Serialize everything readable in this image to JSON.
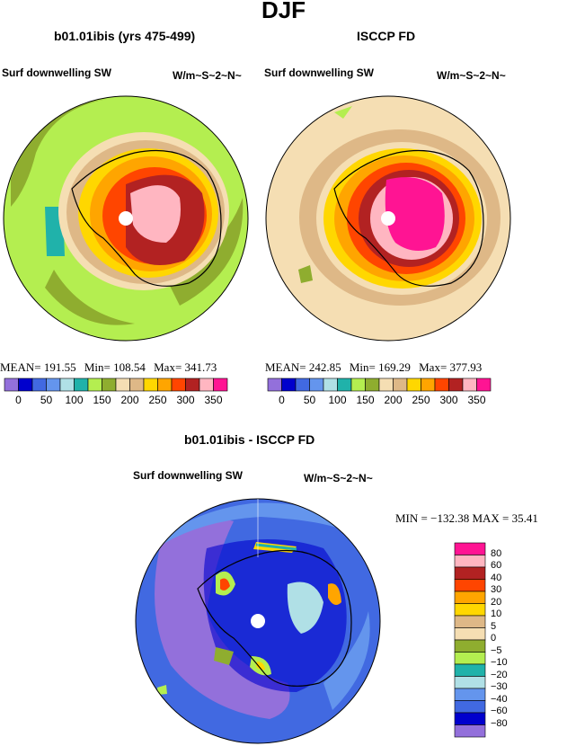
{
  "season": "DJF",
  "left_panel": {
    "title": "b01.01ibis (yrs 475-499)",
    "variable": "Surf downwelling SW",
    "units": "W/m~S~2~N~",
    "stats": {
      "mean_label": "MEAN=",
      "mean": "191.55",
      "min_label": "Min=",
      "min": "108.54",
      "max_label": "Max=",
      "max": "341.73"
    }
  },
  "right_panel": {
    "title": "ISCCP FD",
    "variable": "Surf downwelling SW",
    "units": "W/m~S~2~N~",
    "stats": {
      "mean_label": "MEAN=",
      "mean": "242.85",
      "min_label": "Min=",
      "min": "169.29",
      "max_label": "Max=",
      "max": "377.93"
    }
  },
  "shared_colorbar": {
    "labels": [
      "0",
      "50",
      "100",
      "150",
      "200",
      "250",
      "300",
      "350"
    ],
    "colors": [
      "#9370db",
      "#0000cd",
      "#4169e1",
      "#6495ed",
      "#b0e0e6",
      "#20b2aa",
      "#b4ee50",
      "#8fad2f",
      "#f5deb3",
      "#deb887",
      "#ffd700",
      "#ffa500",
      "#ff4500",
      "#b22222",
      "#ffb6c1",
      "#ff1493"
    ]
  },
  "diff_panel": {
    "title": "b01.01ibis - ISCCP FD",
    "variable": "Surf downwelling SW",
    "units": "W/m~S~2~N~",
    "minmax": "MIN = −132.38 MAX =  35.41",
    "legend": {
      "labels": [
        "80",
        "60",
        "40",
        "30",
        "20",
        "10",
        "5",
        "0",
        "−5",
        "−10",
        "−20",
        "−30",
        "−40",
        "−60",
        "−80"
      ],
      "colors": [
        "#ff1493",
        "#ffb6c1",
        "#b22222",
        "#ff4500",
        "#ffa500",
        "#ffd700",
        "#deb887",
        "#f5deb3",
        "#8fad2f",
        "#b4ee50",
        "#20b2aa",
        "#b0e0e6",
        "#6495ed",
        "#4169e1",
        "#0000cd",
        "#9370db"
      ]
    }
  }
}
